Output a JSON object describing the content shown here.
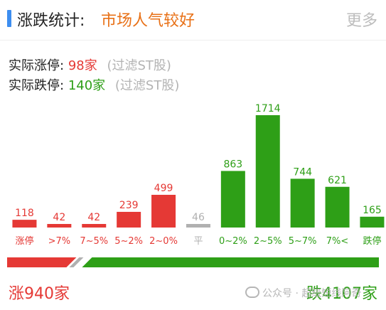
{
  "header": {
    "title": "涨跌统计:",
    "subtitle": "市场人气较好",
    "more": "更多"
  },
  "stats": {
    "up_label": "实际涨停:",
    "up_value": "98家",
    "down_label": "实际跌停:",
    "down_value": "140家",
    "note": "(过滤ST股)"
  },
  "colors": {
    "up": "#e53935",
    "flat": "#b0b0b0",
    "down": "#2e9f17",
    "accent": "#3d8ef0",
    "subtitle": "#e87016"
  },
  "chart_data": {
    "type": "bar",
    "categories": [
      "涨停",
      ">7%",
      "7~5%",
      "5~2%",
      "2~0%",
      "平",
      "0~2%",
      "2~5%",
      "5~7%",
      "7%<",
      "跌停"
    ],
    "values": [
      118,
      42,
      42,
      239,
      499,
      46,
      863,
      1714,
      744,
      621,
      165
    ],
    "value_labels": [
      "118",
      "42",
      "42",
      "239",
      "499",
      "46",
      "863",
      "1714",
      "744",
      "621",
      "165"
    ],
    "bar_colors": [
      "up",
      "up",
      "up",
      "up",
      "up",
      "flat",
      "down",
      "down",
      "down",
      "down",
      "down"
    ],
    "ylim": [
      0,
      1714
    ]
  },
  "footer": {
    "up_total": "涨940家",
    "down_total": "跌4107家",
    "up_count": 940,
    "down_count": 4107,
    "watermark": "公众号 · 超级短线阿奇"
  }
}
